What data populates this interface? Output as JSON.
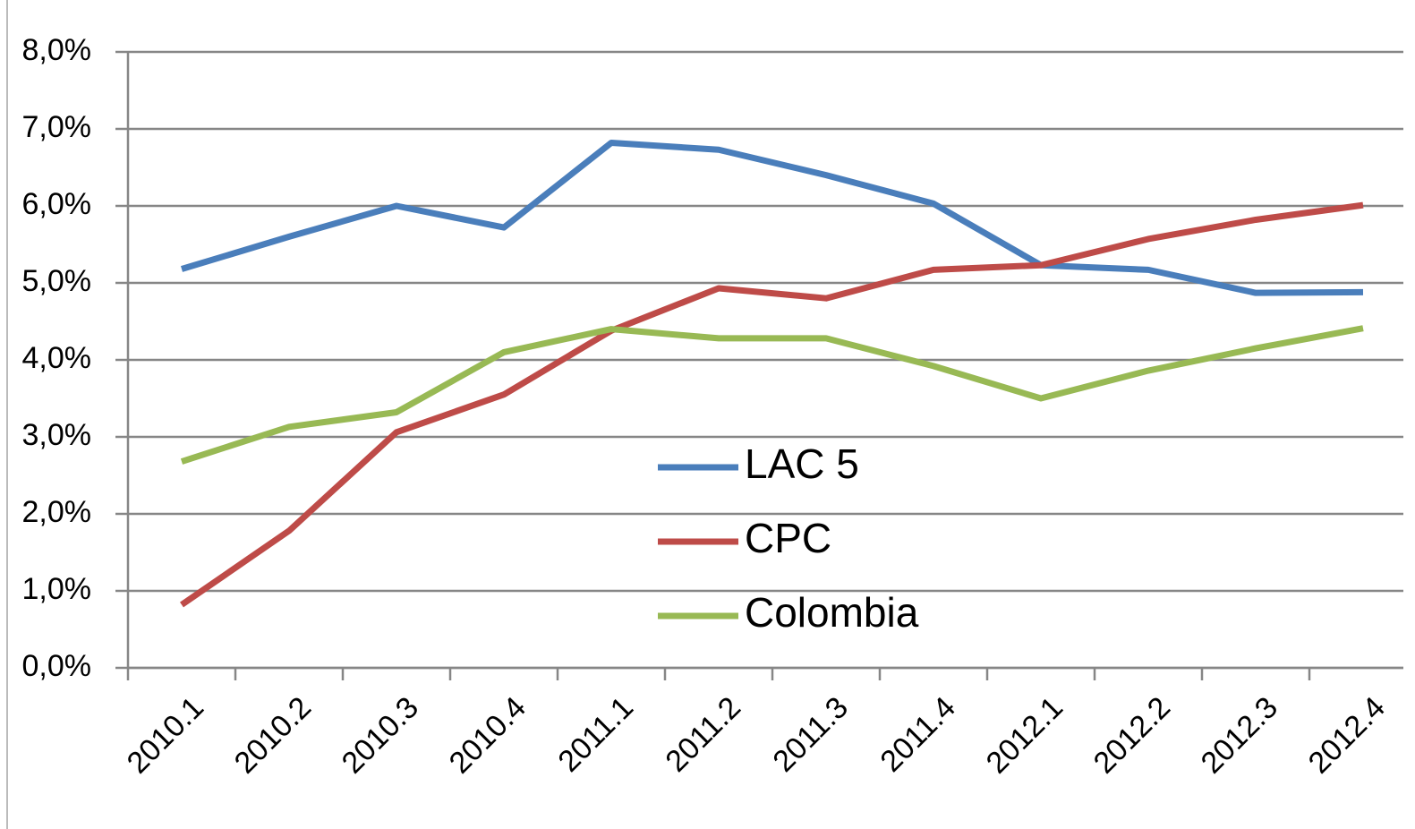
{
  "chart_data": {
    "type": "line",
    "categories": [
      "2010.1",
      "2010.2",
      "2010.3",
      "2010.4",
      "2011.1",
      "2011.2",
      "2011.3",
      "2011.4",
      "2012.1",
      "2012.2",
      "2012.3",
      "2012.4"
    ],
    "series": [
      {
        "name": "LAC 5",
        "color": "#4a7ebb",
        "values": [
          5.18,
          5.6,
          6.0,
          5.72,
          6.82,
          6.73,
          6.4,
          6.03,
          5.23,
          5.17,
          4.87,
          4.88
        ]
      },
      {
        "name": "CPC",
        "color": "#be4b48",
        "values": [
          0.82,
          1.78,
          3.06,
          3.55,
          4.38,
          4.93,
          4.8,
          5.17,
          5.23,
          5.57,
          5.82,
          6.01
        ]
      },
      {
        "name": "Colombia",
        "color": "#98b954",
        "values": [
          2.68,
          3.13,
          3.32,
          4.1,
          4.4,
          4.28,
          4.28,
          3.92,
          3.5,
          3.86,
          4.15,
          4.41
        ]
      }
    ],
    "ylim": [
      0,
      8
    ],
    "yticks": [
      {
        "value": 0,
        "label": "0,0%"
      },
      {
        "value": 1,
        "label": "1,0%"
      },
      {
        "value": 2,
        "label": "2,0%"
      },
      {
        "value": 3,
        "label": "3,0%"
      },
      {
        "value": 4,
        "label": "4,0%"
      },
      {
        "value": 5,
        "label": "5,0%"
      },
      {
        "value": 6,
        "label": "6,0%"
      },
      {
        "value": 7,
        "label": "7,0%"
      },
      {
        "value": 8,
        "label": "8,0%"
      }
    ],
    "grid": true
  }
}
